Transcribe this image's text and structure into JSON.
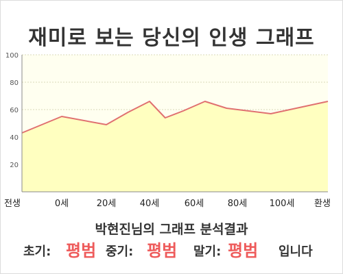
{
  "title": "재미로 보는 당신의 인생 그래프",
  "subtitle": "박현진님의 그래프 분석결과",
  "result": {
    "early_label": "초기:",
    "early_value": "평범",
    "mid_label": "중기:",
    "mid_value": "평범",
    "late_label": "말기:",
    "late_value": "평범",
    "suffix": "입니다"
  },
  "colors": {
    "line": "#e07070",
    "fill": "#ffffc0",
    "plot_bg": "#fffff0",
    "value_text": "#ee5a5a"
  },
  "chart_data": {
    "type": "area",
    "x_tick_labels": [
      "전생",
      "0세",
      "20세",
      "40세",
      "60세",
      "80세",
      "100세",
      "환생"
    ],
    "y_tick_labels": [
      "20",
      "40",
      "60",
      "80",
      "100"
    ],
    "ylim": [
      0,
      100
    ],
    "grid": true,
    "points": [
      {
        "x": -30,
        "y": 43
      },
      {
        "x": 0,
        "y": 55
      },
      {
        "x": 20,
        "y": 49
      },
      {
        "x": 30,
        "y": 58
      },
      {
        "x": 40,
        "y": 66
      },
      {
        "x": 47,
        "y": 54
      },
      {
        "x": 55,
        "y": 59
      },
      {
        "x": 65,
        "y": 66
      },
      {
        "x": 75,
        "y": 61
      },
      {
        "x": 95,
        "y": 57
      },
      {
        "x": 125,
        "y": 66
      }
    ]
  }
}
